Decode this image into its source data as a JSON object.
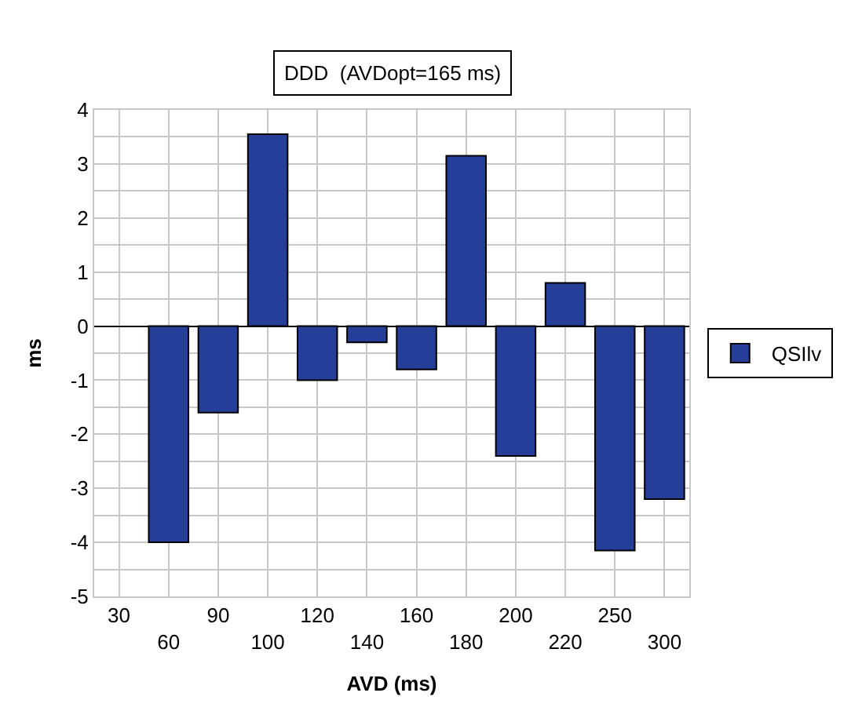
{
  "chart_data": {
    "type": "bar",
    "title": "DDD  (AVDopt=165 ms)",
    "xlabel": "AVD (ms)",
    "ylabel": "ms",
    "categories": [
      "30",
      "60",
      "90",
      "100",
      "120",
      "140",
      "160",
      "180",
      "200",
      "220",
      "250",
      "300"
    ],
    "series": [
      {
        "name": "QSIlv",
        "color": "#253f98",
        "values": [
          null,
          -4,
          -1.6,
          3.55,
          -1,
          -0.3,
          -0.8,
          3.15,
          -2.4,
          0.8,
          -4.15,
          -3.2
        ]
      }
    ],
    "ylim": [
      -5,
      4
    ],
    "yticks": [
      -5,
      -4,
      -3,
      -2,
      -1,
      0,
      1,
      2,
      3,
      4
    ],
    "grid": true,
    "legend": "right"
  }
}
